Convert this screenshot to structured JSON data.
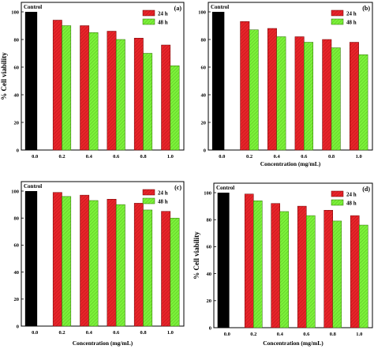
{
  "chart_data": [
    {
      "type": "bar",
      "panel_label": "(a)",
      "categories": [
        "0.0",
        "0.2",
        "0.4",
        "0.6",
        "0.8",
        "1.0"
      ],
      "control_label": "Control",
      "control_value": 100,
      "series": [
        {
          "name": "24 h",
          "color": "#e8242a",
          "values": [
            null,
            94,
            90,
            86,
            81,
            76
          ]
        },
        {
          "name": "48 h",
          "color": "#7cf23a",
          "values": [
            null,
            90,
            85,
            80,
            70,
            61
          ]
        }
      ],
      "ylabel": "% Cell viability",
      "xlabel": "",
      "ylim": [
        0,
        100
      ],
      "yticks": [
        0,
        20,
        40,
        60,
        80,
        100
      ],
      "legend": "top-right"
    },
    {
      "type": "bar",
      "panel_label": "(b)",
      "categories": [
        "0.0",
        "0.2",
        "0.4",
        "0.6",
        "0.8",
        "1.0"
      ],
      "control_label": "Control",
      "control_value": 100,
      "series": [
        {
          "name": "24 h",
          "color": "#e8242a",
          "values": [
            null,
            93,
            88,
            82,
            80,
            78
          ]
        },
        {
          "name": "48 h",
          "color": "#7cf23a",
          "values": [
            null,
            87,
            82,
            78,
            74,
            69
          ]
        }
      ],
      "ylabel": "",
      "xlabel": "Concentration (mg/mL)",
      "ylim": [
        0,
        100
      ],
      "yticks": [
        0,
        20,
        40,
        60,
        80,
        100
      ],
      "legend": "top-right"
    },
    {
      "type": "bar",
      "panel_label": "(c)",
      "categories": [
        "0.0",
        "0.2",
        "0.4",
        "0.6",
        "0.8",
        "1.0"
      ],
      "control_label": "Control",
      "control_value": 100,
      "series": [
        {
          "name": "24 h",
          "color": "#e8242a",
          "values": [
            null,
            99,
            97,
            94,
            91,
            85
          ]
        },
        {
          "name": "48 h",
          "color": "#7cf23a",
          "values": [
            null,
            96,
            93,
            90,
            86,
            80
          ]
        }
      ],
      "ylabel": "",
      "xlabel": "Concentration (mg/mL)",
      "ylim": [
        0,
        100
      ],
      "yticks": [
        0,
        20,
        40,
        60,
        80,
        100
      ],
      "legend": "top-right"
    },
    {
      "type": "bar",
      "panel_label": "(d)",
      "categories": [
        "0.0",
        "0.2",
        "0.4",
        "0.6",
        "0.8",
        "1.0"
      ],
      "control_label": "Control",
      "control_value": 100,
      "series": [
        {
          "name": "24 h",
          "color": "#e8242a",
          "values": [
            null,
            99,
            92,
            90,
            87,
            83
          ]
        },
        {
          "name": "48 h",
          "color": "#7cf23a",
          "values": [
            null,
            94,
            86,
            83,
            79,
            76
          ]
        }
      ],
      "ylabel": "% Cell viability",
      "xlabel": "Concentration (mg/mL)",
      "ylim": [
        0,
        100
      ],
      "yticks": [
        0,
        20,
        40,
        60,
        80,
        100
      ],
      "legend": "top-right"
    }
  ]
}
